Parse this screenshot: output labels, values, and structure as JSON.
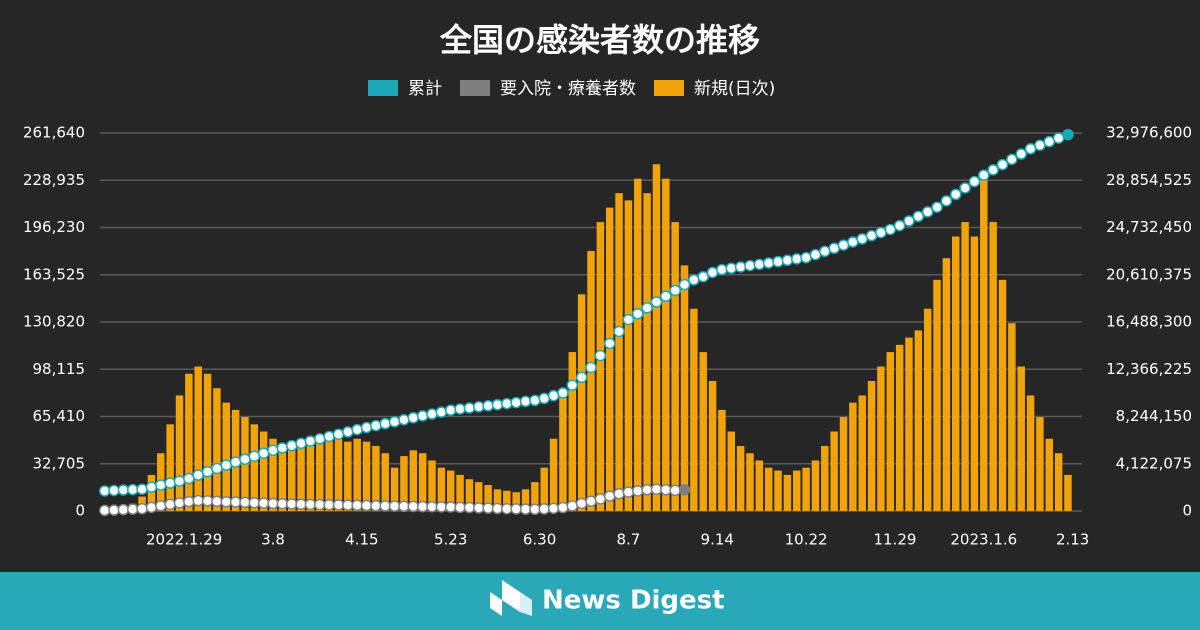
{
  "chart_data": {
    "type": "bar",
    "title": "全国の感染者数の推移",
    "xlim": [
      -8,
      412
    ],
    "xticks": [
      {
        "value": 28,
        "label": "2022.1.29"
      },
      {
        "value": 66,
        "label": "3.8"
      },
      {
        "value": 104,
        "label": "4.15"
      },
      {
        "value": 142,
        "label": "5.23"
      },
      {
        "value": 180,
        "label": "6.30"
      },
      {
        "value": 218,
        "label": "8.7"
      },
      {
        "value": 256,
        "label": "9.14"
      },
      {
        "value": 294,
        "label": "10.22"
      },
      {
        "value": 332,
        "label": "11.29"
      },
      {
        "value": 370,
        "label": "2023.1.6"
      },
      {
        "value": 408,
        "label": "2.13"
      }
    ],
    "ylim": [
      0,
      261640
    ],
    "yticks": [
      0,
      {
        "value": 32705,
        "label": "32,705"
      },
      {
        "value": 65410,
        "label": "65,410"
      },
      {
        "value": 98115,
        "label": "98,115"
      },
      {
        "value": 130820,
        "label": "130,820"
      },
      {
        "value": 163525,
        "label": "163,525"
      },
      {
        "value": 196230,
        "label": "196,230"
      },
      {
        "value": 228935,
        "label": "228,935"
      },
      {
        "value": 261640,
        "label": "261,640"
      }
    ],
    "y2lim": [
      0,
      32976600
    ],
    "y2ticks": [
      0,
      {
        "value": 4122075,
        "label": "4,122,075"
      },
      {
        "value": 8244150,
        "label": "8,244,150"
      },
      {
        "value": 12366225,
        "label": "12,366,225"
      },
      {
        "value": 16488300,
        "label": "16,488,300"
      },
      {
        "value": 20610375,
        "label": "20,610,375"
      },
      {
        "value": 24732450,
        "label": "24,732,450"
      },
      {
        "value": 28854525,
        "label": "28,854,525"
      },
      {
        "value": 32976600,
        "label": "32,976,600"
      }
    ],
    "grid": true,
    "x": [
      -6,
      -2,
      2,
      6,
      10,
      14,
      18,
      22,
      26,
      30,
      34,
      38,
      42,
      46,
      50,
      54,
      58,
      62,
      66,
      70,
      74,
      78,
      82,
      86,
      90,
      94,
      98,
      102,
      106,
      110,
      114,
      118,
      122,
      126,
      130,
      134,
      138,
      142,
      146,
      150,
      154,
      158,
      162,
      166,
      170,
      174,
      178,
      182,
      186,
      190,
      194,
      198,
      202,
      206,
      210,
      214,
      218,
      222,
      226,
      230,
      234,
      238,
      242,
      246,
      250,
      254,
      258,
      262,
      266,
      270,
      274,
      278,
      282,
      286,
      290,
      294,
      298,
      302,
      306,
      310,
      314,
      318,
      322,
      326,
      330,
      334,
      338,
      342,
      346,
      350,
      354,
      358,
      362,
      366,
      370,
      374,
      378,
      382,
      386,
      390,
      394,
      398,
      402,
      406
    ],
    "series": [
      {
        "name": "累計",
        "color": "#1ba8b8",
        "type": "line",
        "axis": "y2",
        "values": [
          1750000,
          1790000,
          1830000,
          1860000,
          1900000,
          2080000,
          2260000,
          2430000,
          2610000,
          2840000,
          3130000,
          3420000,
          3710000,
          4000000,
          4260000,
          4520000,
          4780000,
          5040000,
          5300000,
          5500000,
          5700000,
          5900000,
          6100000,
          6300000,
          6500000,
          6700000,
          6900000,
          7100000,
          7280000,
          7450000,
          7620000,
          7790000,
          7960000,
          8130000,
          8300000,
          8460000,
          8630000,
          8800000,
          8900000,
          8990000,
          9090000,
          9180000,
          9270000,
          9370000,
          9460000,
          9560000,
          9650000,
          9820000,
          10060000,
          10300000,
          10980000,
          11660000,
          12520000,
          13560000,
          14610000,
          15660000,
          16700000,
          17210000,
          17720000,
          18230000,
          18730000,
          19240000,
          19750000,
          20160000,
          20440000,
          20810000,
          21060000,
          21180000,
          21290000,
          21410000,
          21520000,
          21640000,
          21750000,
          21870000,
          21990000,
          22100000,
          22370000,
          22650000,
          22920000,
          23200000,
          23470000,
          23740000,
          24020000,
          24290000,
          24560000,
          24900000,
          25300000,
          25700000,
          26100000,
          26500000,
          27060000,
          27620000,
          28180000,
          28740000,
          29300000,
          29760000,
          30220000,
          30680000,
          31140000,
          31600000,
          31910000,
          32220000,
          32530000,
          32840000
        ]
      },
      {
        "name": "要入院・療養者数",
        "color": "#7f7f7f",
        "type": "line",
        "axis": "y2",
        "values": [
          50000,
          80000,
          120000,
          160000,
          200000,
          320000,
          450000,
          580000,
          700000,
          820000,
          900000,
          880000,
          840000,
          800000,
          780000,
          750000,
          720000,
          690000,
          650000,
          630000,
          610000,
          590000,
          570000,
          560000,
          540000,
          530000,
          510000,
          500000,
          480000,
          460000,
          450000,
          430000,
          410000,
          400000,
          380000,
          370000,
          360000,
          350000,
          320000,
          300000,
          270000,
          250000,
          220000,
          200000,
          180000,
          160000,
          150000,
          180000,
          230000,
          300000,
          450000,
          650000,
          850000,
          1050000,
          1300000,
          1500000,
          1650000,
          1750000,
          1850000,
          1900000,
          1850000,
          1800000,
          1850000,
          null,
          null,
          null,
          null,
          null,
          null,
          null,
          null,
          null,
          null,
          null,
          null,
          null,
          null,
          null,
          null,
          null,
          null,
          null,
          null,
          null,
          null,
          null,
          null,
          null,
          null,
          null,
          null,
          null,
          null,
          null,
          null,
          null,
          null,
          null,
          null,
          null,
          null,
          null,
          null,
          null
        ]
      },
      {
        "name": "新規(日次)",
        "color": "#f0a30a",
        "type": "bar",
        "axis": "y",
        "values": [
          1000,
          1500,
          2500,
          5000,
          10000,
          25000,
          40000,
          60000,
          80000,
          95000,
          100000,
          95000,
          85000,
          75000,
          70000,
          65000,
          60000,
          55000,
          50000,
          45000,
          45000,
          50000,
          45000,
          48000,
          50000,
          50000,
          48000,
          50000,
          48000,
          45000,
          40000,
          30000,
          38000,
          42000,
          40000,
          35000,
          30000,
          28000,
          25000,
          22000,
          20000,
          18000,
          15000,
          14000,
          13000,
          15000,
          20000,
          30000,
          50000,
          80000,
          110000,
          150000,
          180000,
          200000,
          210000,
          220000,
          215000,
          230000,
          220000,
          240000,
          230000,
          200000,
          170000,
          140000,
          110000,
          90000,
          70000,
          55000,
          45000,
          40000,
          35000,
          30000,
          28000,
          25000,
          28000,
          30000,
          35000,
          45000,
          55000,
          65000,
          75000,
          80000,
          90000,
          100000,
          110000,
          115000,
          120000,
          125000,
          140000,
          160000,
          175000,
          190000,
          200000,
          190000,
          230000,
          200000,
          160000,
          130000,
          100000,
          80000,
          65000,
          50000,
          40000,
          25000
        ]
      }
    ]
  },
  "footer": {
    "brand": "News Digest"
  }
}
